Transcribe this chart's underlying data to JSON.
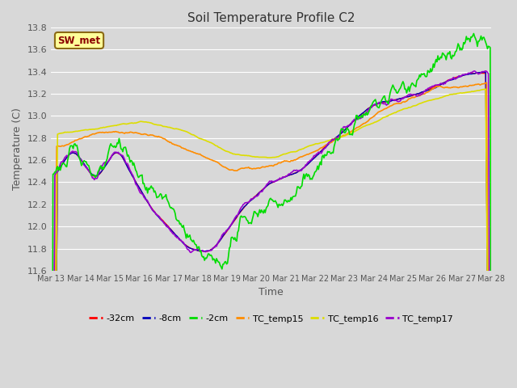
{
  "title": "Soil Temperature Profile C2",
  "xlabel": "Time",
  "ylabel": "Temperature (C)",
  "ylim": [
    11.6,
    13.8
  ],
  "background_color": "#d8d8d8",
  "plot_bg_color": "#d8d8d8",
  "grid_color": "white",
  "annotation_text": "SW_met",
  "annotation_color": "#8B0000",
  "annotation_bg": "#ffff99",
  "annotation_border": "#8B6914",
  "legend_labels": [
    "-32cm",
    "-8cm",
    "-2cm",
    "TC_temp15",
    "TC_temp16",
    "TC_temp17"
  ],
  "legend_colors": [
    "#ff0000",
    "#0000bb",
    "#00dd00",
    "#ff8c00",
    "#dddd00",
    "#9900cc"
  ],
  "tick_labels": [
    "Mar 13",
    "Mar 14",
    "Mar 15",
    "Mar 16",
    "Mar 17",
    "Mar 18",
    "Mar 19",
    "Mar 20",
    "Mar 21",
    "Mar 22",
    "Mar 23",
    "Mar 24",
    "Mar 25",
    "Mar 26",
    "Mar 27",
    "Mar 28"
  ],
  "yticks": [
    11.6,
    11.8,
    12.0,
    12.2,
    12.4,
    12.6,
    12.8,
    13.0,
    13.2,
    13.4,
    13.6,
    13.8
  ],
  "n_points": 480
}
